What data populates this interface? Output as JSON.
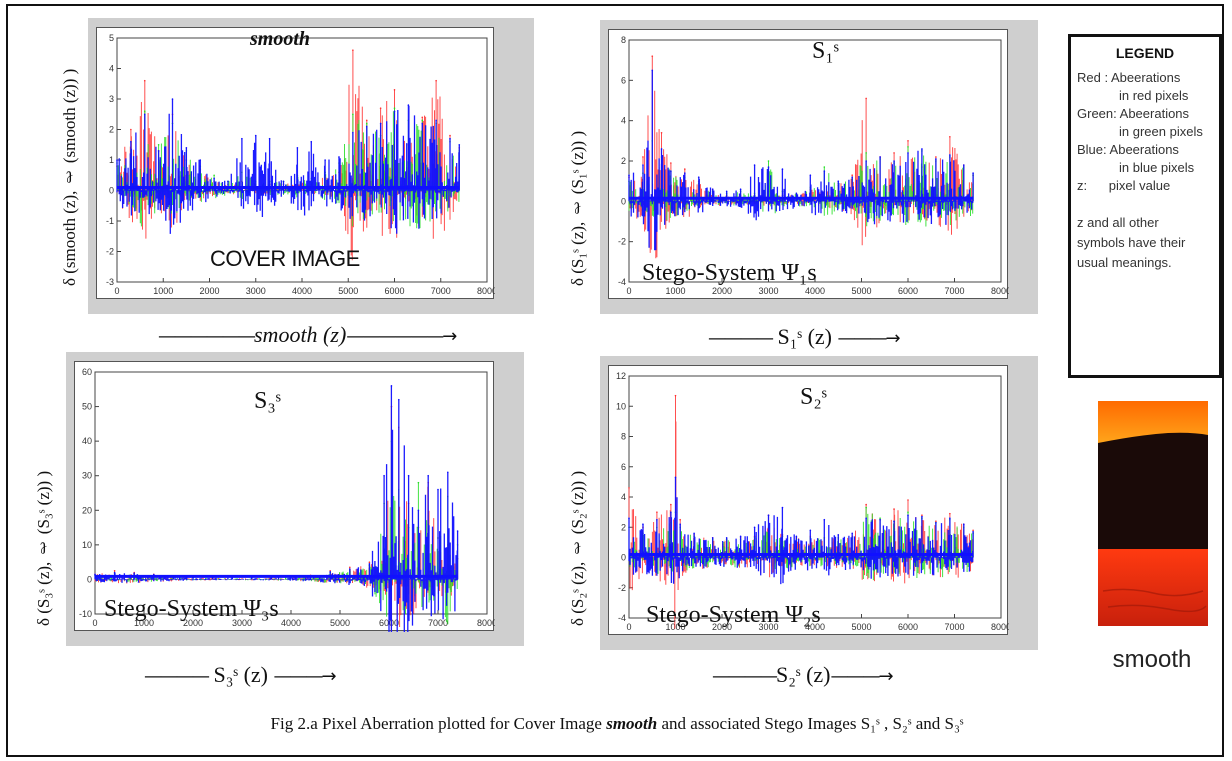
{
  "legend": {
    "title": "LEGEND",
    "items": [
      {
        "key": "Red :",
        "text": "Abeerations",
        "sub": "in red pixels"
      },
      {
        "key": "Green:",
        "text": "Abeerations",
        "sub": "in green pixels"
      },
      {
        "key": "Blue:",
        "text": "Abeerations",
        "sub": "in blue pixels"
      },
      {
        "key": "z:",
        "text": "pixel value",
        "sub": ""
      }
    ],
    "note_lines": [
      "z and all other",
      "symbols have their",
      "usual meanings."
    ]
  },
  "thumbnail_label": "smooth",
  "caption": {
    "prefix": "Fig 2.a    Pixel Aberration plotted for Cover Image ",
    "image_name": "smooth",
    "suffix": " and associated Stego Images S₁ˢ , S₂ˢ and S₃ˢ"
  },
  "colors": {
    "red": "#ff3030",
    "green": "#22dd22",
    "blue": "#1010ff"
  },
  "chart_data": [
    {
      "type": "line",
      "title": "smooth",
      "label": "COVER IMAGE",
      "xlabel": "smooth (z)",
      "ylabel": "δ (smooth (z), ℓ (smooth (z)) )",
      "xlim": [
        0,
        8000
      ],
      "ylim": [
        -3,
        5
      ],
      "xticks": [
        "0",
        "1000",
        "2000",
        "3000",
        "4000",
        "5000",
        "6000",
        "7000",
        "8000"
      ],
      "yticks": [
        "5",
        "4",
        "3",
        "2",
        "1",
        "0",
        "-1",
        "-2",
        "-3"
      ],
      "series": [
        {
          "color": "red",
          "x": [
            0,
            300,
            600,
            900,
            1200,
            1500,
            1800,
            2100,
            2400,
            2700,
            3000,
            3300,
            3600,
            3900,
            4200,
            4500,
            4800,
            5100,
            5400,
            5700,
            6000,
            6300,
            6600,
            6900,
            7200,
            7400
          ],
          "y": [
            0.8,
            2.0,
            3.6,
            1.3,
            2.5,
            1.0,
            0.7,
            0.3,
            0.2,
            0.3,
            0.2,
            0.2,
            0.2,
            0.3,
            0.2,
            0.5,
            0.6,
            4.6,
            2.3,
            2.7,
            3.3,
            1.5,
            2.4,
            3.6,
            1.8,
            1.4
          ]
        },
        {
          "color": "green",
          "x": [
            0,
            300,
            600,
            900,
            1200,
            1500,
            1800,
            2100,
            2400,
            2700,
            3000,
            3300,
            3600,
            3900,
            4200,
            4500,
            4800,
            5100,
            5400,
            5700,
            6000,
            6300,
            6600,
            6900,
            7200,
            7400
          ],
          "y": [
            0.9,
            1.3,
            2.6,
            1.5,
            2.2,
            1.3,
            0.8,
            0.5,
            0.3,
            0.6,
            0.3,
            0.3,
            0.3,
            0.5,
            0.4,
            0.6,
            0.9,
            2.5,
            2.2,
            1.8,
            2.7,
            2.3,
            2.3,
            2.2,
            1.6,
            1.3
          ]
        },
        {
          "color": "blue",
          "x": [
            0,
            300,
            600,
            900,
            1200,
            1500,
            1800,
            2100,
            2400,
            2700,
            3000,
            3300,
            3600,
            3900,
            4200,
            4500,
            4800,
            5100,
            5400,
            5700,
            6000,
            6300,
            6600,
            6900,
            7200,
            7400
          ],
          "y": [
            1.0,
            1.6,
            2.5,
            1.3,
            3.0,
            1.4,
            1.0,
            0.4,
            0.3,
            1.7,
            1.8,
            1.7,
            0.3,
            1.4,
            1.6,
            1.0,
            1.1,
            1.9,
            2.1,
            2.2,
            2.6,
            2.8,
            2.2,
            2.3,
            1.7,
            1.5
          ]
        }
      ]
    },
    {
      "type": "line",
      "title": "S₁ˢ",
      "label": "Stego-System Ψ₁s",
      "xlabel": "S₁ˢ (z)",
      "ylabel": "δ (S₁ˢ (z), ℓ (S₁ˢ (z)) )",
      "xlim": [
        0,
        8000
      ],
      "ylim": [
        -4,
        8
      ],
      "xticks": [
        "0",
        "1000",
        "2000",
        "3000",
        "4000",
        "5000",
        "6000",
        "7000",
        "8000"
      ],
      "yticks": [
        "8",
        "6",
        "4",
        "2",
        "0",
        "-2",
        "-4"
      ],
      "series": [
        {
          "color": "red",
          "x": [
            0,
            300,
            500,
            700,
            900,
            1200,
            1500,
            1800,
            2100,
            2400,
            2700,
            3000,
            3300,
            3600,
            3900,
            4200,
            4500,
            4800,
            5100,
            5400,
            5700,
            6000,
            6300,
            6600,
            6900,
            7200,
            7400
          ],
          "y": [
            1.2,
            2.2,
            7.2,
            3.4,
            1.9,
            1.6,
            1.0,
            0.6,
            0.3,
            0.3,
            0.3,
            0.5,
            0.3,
            0.3,
            0.6,
            0.5,
            0.8,
            1.3,
            5.1,
            2.2,
            2.4,
            3.0,
            1.7,
            2.2,
            3.2,
            1.8,
            1.3
          ]
        },
        {
          "color": "green",
          "x": [
            0,
            300,
            500,
            700,
            900,
            1200,
            1500,
            1800,
            2100,
            2400,
            2700,
            3000,
            3300,
            3600,
            3900,
            4200,
            4500,
            4800,
            5100,
            5400,
            5700,
            6000,
            6300,
            6600,
            6900,
            7200,
            7400
          ],
          "y": [
            1.0,
            1.4,
            3.0,
            2.2,
            1.5,
            1.2,
            0.9,
            0.5,
            0.4,
            0.5,
            0.4,
            2.0,
            0.5,
            0.4,
            0.7,
            1.7,
            0.9,
            1.1,
            2.4,
            2.1,
            1.9,
            2.7,
            2.5,
            2.0,
            2.2,
            1.7,
            1.3
          ]
        },
        {
          "color": "blue",
          "x": [
            0,
            300,
            500,
            700,
            900,
            1200,
            1500,
            1800,
            2100,
            2400,
            2700,
            3000,
            3300,
            3600,
            3900,
            4200,
            4500,
            4800,
            5100,
            5400,
            5700,
            6000,
            6300,
            6600,
            6900,
            7200,
            7400
          ],
          "y": [
            1.3,
            1.8,
            6.5,
            2.6,
            1.5,
            1.4,
            1.2,
            0.6,
            0.5,
            0.6,
            1.8,
            1.7,
            1.6,
            0.4,
            1.3,
            1.5,
            1.0,
            1.2,
            2.0,
            2.2,
            2.0,
            2.4,
            2.6,
            2.1,
            2.3,
            1.8,
            1.4
          ]
        }
      ]
    },
    {
      "type": "line",
      "title": "S₃ˢ",
      "label": "Stego-System Ψ₃s",
      "xlabel": "S₃ˢ (z)",
      "ylabel": "δ (S₃ˢ (z), ℓ (S₃ˢ (z)) )",
      "xlim": [
        0,
        8000
      ],
      "ylim": [
        -10,
        60
      ],
      "xticks": [
        "0",
        "1000",
        "2000",
        "3000",
        "4000",
        "5000",
        "6000",
        "7000",
        "8000"
      ],
      "yticks": [
        "60",
        "50",
        "40",
        "30",
        "20",
        "10",
        "0",
        "-10"
      ],
      "series": [
        {
          "color": "red",
          "x": [
            0,
            400,
            800,
            1200,
            1600,
            2000,
            2400,
            2800,
            3200,
            3600,
            4000,
            4400,
            4800,
            5200,
            5600,
            5900,
            6050,
            6200,
            6400,
            6600,
            6800,
            7000,
            7200,
            7400
          ],
          "y": [
            1.5,
            2.5,
            2.0,
            1.5,
            1.0,
            0.6,
            0.5,
            0.5,
            0.5,
            0.6,
            0.8,
            1.2,
            2.5,
            3.5,
            5.0,
            12.0,
            50.0,
            44.0,
            22.0,
            15.0,
            28.0,
            12.0,
            10.0,
            6.0
          ]
        },
        {
          "color": "green",
          "x": [
            0,
            400,
            800,
            1200,
            1600,
            2000,
            2400,
            2800,
            3200,
            3600,
            4000,
            4400,
            4800,
            5200,
            5600,
            5900,
            6050,
            6200,
            6400,
            6600,
            6800,
            7000,
            7200,
            7400
          ],
          "y": [
            1.2,
            1.8,
            1.5,
            1.2,
            0.8,
            0.5,
            0.4,
            0.4,
            0.4,
            0.5,
            0.7,
            1.0,
            2.0,
            2.5,
            4.0,
            22.0,
            40.0,
            26.0,
            15.0,
            28.0,
            16.0,
            12.0,
            24.0,
            10.0
          ]
        },
        {
          "color": "blue",
          "x": [
            0,
            400,
            800,
            1200,
            1600,
            2000,
            2400,
            2800,
            3200,
            3600,
            4000,
            4400,
            4800,
            5200,
            5600,
            5900,
            6050,
            6200,
            6400,
            6600,
            6800,
            7000,
            7200,
            7400
          ],
          "y": [
            1.5,
            2.0,
            1.8,
            1.4,
            1.0,
            0.6,
            0.5,
            0.5,
            0.5,
            0.6,
            0.8,
            1.1,
            2.2,
            3.0,
            4.5,
            30.0,
            56.0,
            52.0,
            30.0,
            20.0,
            30.0,
            26.0,
            31.0,
            14.0
          ]
        }
      ]
    },
    {
      "type": "line",
      "title": "S₂ˢ",
      "label": "Stego-System Ψ₂s",
      "xlabel": "S₂ˢ (z)",
      "ylabel": "δ (S₂ˢ (z), ℓ (S₂ˢ (z)) )",
      "xlim": [
        0,
        8000
      ],
      "ylim": [
        -4,
        12
      ],
      "xticks": [
        "0",
        "1000",
        "2000",
        "3000",
        "4000",
        "5000",
        "6000",
        "7000",
        "8000"
      ],
      "yticks": [
        "12",
        "10",
        "8",
        "6",
        "4",
        "2",
        "0",
        "-2",
        "-4"
      ],
      "series": [
        {
          "color": "red",
          "x": [
            0,
            300,
            600,
            900,
            1000,
            1100,
            1400,
            1800,
            2100,
            2400,
            2700,
            3000,
            3300,
            3600,
            3900,
            4200,
            4500,
            4800,
            5100,
            5400,
            5700,
            6000,
            6300,
            6600,
            6900,
            7200,
            7400
          ],
          "y": [
            4.6,
            2.0,
            3.0,
            3.5,
            10.7,
            2.5,
            1.5,
            1.3,
            1.2,
            1.3,
            1.4,
            2.8,
            1.5,
            1.3,
            1.4,
            1.3,
            1.3,
            1.4,
            3.5,
            2.5,
            3.2,
            3.8,
            2.8,
            2.4,
            2.9,
            2.2,
            1.8
          ]
        },
        {
          "color": "green",
          "x": [
            0,
            300,
            600,
            900,
            1000,
            1100,
            1400,
            1800,
            2100,
            2400,
            2700,
            3000,
            3300,
            3600,
            3900,
            4200,
            4500,
            4800,
            5100,
            5400,
            5700,
            6000,
            6300,
            6600,
            6900,
            7200,
            7400
          ],
          "y": [
            2.0,
            1.6,
            2.0,
            2.3,
            3.0,
            2.0,
            1.4,
            1.2,
            1.2,
            1.2,
            1.3,
            2.0,
            1.4,
            1.2,
            1.3,
            1.3,
            1.3,
            1.3,
            3.3,
            2.6,
            2.4,
            3.0,
            2.6,
            2.3,
            2.5,
            2.0,
            1.6
          ]
        },
        {
          "color": "blue",
          "x": [
            0,
            300,
            600,
            900,
            1000,
            1100,
            1400,
            1800,
            2100,
            2400,
            2700,
            3000,
            3300,
            3600,
            3900,
            4200,
            4500,
            4800,
            5100,
            5400,
            5700,
            6000,
            6300,
            6600,
            6900,
            7200,
            7400
          ],
          "y": [
            2.6,
            2.2,
            2.5,
            3.0,
            5.3,
            2.2,
            1.6,
            1.3,
            1.3,
            1.4,
            2.0,
            2.8,
            3.3,
            1.4,
            1.8,
            2.5,
            1.5,
            1.6,
            2.6,
            2.5,
            2.4,
            2.8,
            2.7,
            2.3,
            2.6,
            2.2,
            1.7
          ]
        }
      ]
    }
  ]
}
